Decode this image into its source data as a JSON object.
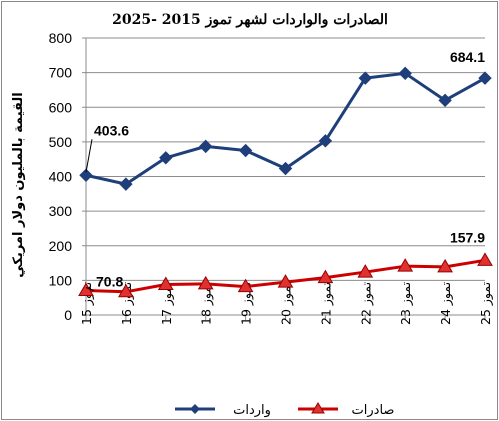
{
  "chart_data": {
    "type": "line",
    "title": "الصادرات والواردات لشهر تموز 2015 -2025",
    "ylabel": "القيمة بالمليون دولار امريكي",
    "xlabel": "",
    "categories": [
      "تموز 15",
      "تموز 16",
      "تموز 17",
      "تموز 18",
      "تموز 19",
      "تموز 20",
      "تموز 21",
      "تموز 22",
      "تموز 23",
      "تموز 24",
      "تموز 25"
    ],
    "ylim": [
      0,
      800
    ],
    "yticks": [
      "0",
      "100",
      "200",
      "300",
      "400",
      "500",
      "600",
      "700",
      "800"
    ],
    "grid": "horizontal",
    "legend_position": "bottom",
    "series": [
      {
        "name": "واردات",
        "color": "#1f3f7a",
        "marker": "diamond",
        "values": [
          403.6,
          378,
          454,
          487,
          475,
          423,
          503,
          684,
          698,
          620,
          684.1
        ]
      },
      {
        "name": "صادرات",
        "color": "#cc0000",
        "marker": "triangle",
        "values": [
          70.8,
          67,
          88,
          90,
          82,
          95,
          108,
          124,
          141,
          139,
          157.9
        ]
      }
    ],
    "annotations": [
      {
        "text": "403.6",
        "series": 0,
        "index": 0
      },
      {
        "text": "684.1",
        "series": 0,
        "index": 10
      },
      {
        "text": "70.8",
        "series": 1,
        "index": 0
      },
      {
        "text": "157.9",
        "series": 1,
        "index": 10
      }
    ]
  }
}
